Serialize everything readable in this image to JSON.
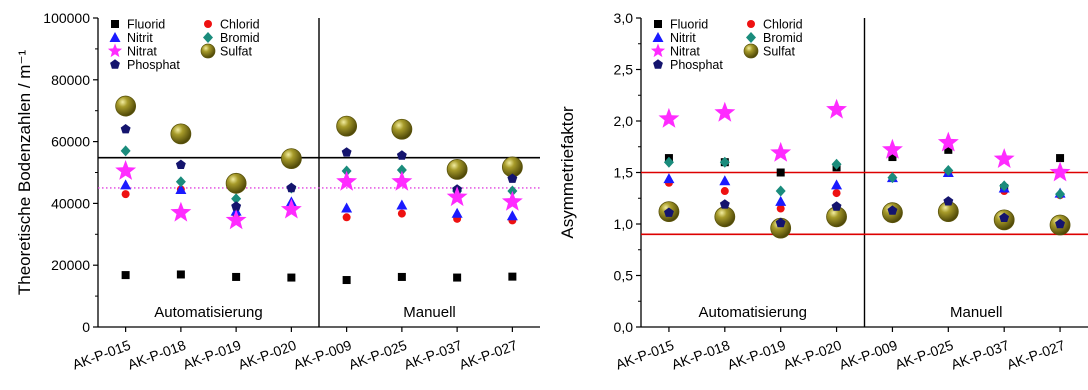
{
  "chart_data": [
    {
      "type": "scatter",
      "title": "",
      "ylabel": "Theoretische Bodenzahlen / m⁻¹",
      "xlabel": "",
      "categories": [
        "AK-P-015",
        "AK-P-018",
        "AK-P-019",
        "AK-P-020",
        "AK-P-009",
        "AK-P-025",
        "AK-P-037",
        "AK-P-027"
      ],
      "ylim": [
        0,
        100000
      ],
      "yticks": [
        "0",
        "20000",
        "40000",
        "60000",
        "80000",
        "100000"
      ],
      "ytick_values": [
        0,
        20000,
        40000,
        60000,
        80000,
        100000
      ],
      "groups": [
        {
          "label": "Automatisierung",
          "from": 0,
          "to": 3
        },
        {
          "label": "Manuell",
          "from": 4,
          "to": 7
        }
      ],
      "separator_after_index": 3,
      "reference_lines": [
        {
          "value": 54800,
          "color": "#000000",
          "style": "solid"
        },
        {
          "value": 45000,
          "color": "#e040e0",
          "style": "dotted"
        }
      ],
      "legend_position": "top-left",
      "grid": false,
      "series": [
        {
          "name": "Fluorid",
          "marker": "square",
          "color": "#000000",
          "values": [
            16800,
            17000,
            16200,
            16000,
            15200,
            16200,
            16000,
            16300
          ]
        },
        {
          "name": "Chlorid",
          "marker": "circle",
          "color": "#ee1111",
          "values": [
            43000,
            44500,
            36500,
            39500,
            35500,
            36700,
            35000,
            34500
          ]
        },
        {
          "name": "Nitrit",
          "marker": "triangle",
          "color": "#1a1aff",
          "values": [
            46000,
            44500,
            37500,
            40500,
            38500,
            39500,
            36800,
            36000
          ]
        },
        {
          "name": "Bromid",
          "marker": "diamond",
          "color": "#1a8c7c",
          "values": [
            57000,
            47000,
            41500,
            45000,
            50500,
            50800,
            44000,
            44000
          ]
        },
        {
          "name": "Nitrat",
          "marker": "star",
          "color": "#ff2bff",
          "values": [
            50500,
            37000,
            34500,
            38000,
            47000,
            47000,
            42000,
            40500
          ]
        },
        {
          "name": "Sulfat",
          "marker": "sphere",
          "color": "#8e8416",
          "values": [
            71500,
            62500,
            46500,
            54500,
            65000,
            64000,
            51000,
            51800
          ]
        },
        {
          "name": "Phosphat",
          "marker": "pentagon",
          "color": "#14146e",
          "values": [
            64000,
            52500,
            39000,
            45000,
            56500,
            55500,
            44500,
            48000
          ]
        }
      ]
    },
    {
      "type": "scatter",
      "title": "",
      "ylabel": "Asymmetriefaktor",
      "xlabel": "",
      "categories": [
        "AK-P-015",
        "AK-P-018",
        "AK-P-019",
        "AK-P-020",
        "AK-P-009",
        "AK-P-025",
        "AK-P-037",
        "AK-P-027"
      ],
      "ylim": [
        0,
        3
      ],
      "yticks": [
        "0,0",
        "0,5",
        "1,0",
        "1,5",
        "2,0",
        "2,5",
        "3,0"
      ],
      "ytick_values": [
        0,
        0.5,
        1,
        1.5,
        2,
        2.5,
        3
      ],
      "groups": [
        {
          "label": "Automatisierung",
          "from": 0,
          "to": 3
        },
        {
          "label": "Manuell",
          "from": 4,
          "to": 7
        }
      ],
      "separator_after_index": 3,
      "reference_lines": [
        {
          "value": 1.5,
          "color": "#dd0000",
          "style": "solid"
        },
        {
          "value": 0.9,
          "color": "#dd0000",
          "style": "solid"
        }
      ],
      "legend_position": "top-left",
      "grid": false,
      "series": [
        {
          "name": "Fluorid",
          "marker": "square",
          "color": "#000000",
          "values": [
            1.64,
            1.6,
            1.5,
            1.55,
            1.65,
            1.72,
            1.35,
            1.64
          ]
        },
        {
          "name": "Chlorid",
          "marker": "circle",
          "color": "#ee1111",
          "values": [
            1.4,
            1.32,
            1.15,
            1.3,
            1.45,
            1.5,
            1.32,
            1.28
          ]
        },
        {
          "name": "Nitrit",
          "marker": "triangle",
          "color": "#1a1aff",
          "values": [
            1.44,
            1.42,
            1.22,
            1.38,
            1.45,
            1.5,
            1.35,
            1.3
          ]
        },
        {
          "name": "Bromid",
          "marker": "diamond",
          "color": "#1a8c7c",
          "values": [
            1.6,
            1.6,
            1.32,
            1.58,
            1.45,
            1.52,
            1.37,
            1.29
          ]
        },
        {
          "name": "Nitrat",
          "marker": "star",
          "color": "#ff2bff",
          "values": [
            2.02,
            2.08,
            1.69,
            2.11,
            1.72,
            1.79,
            1.63,
            1.5
          ]
        },
        {
          "name": "Sulfat",
          "marker": "sphere",
          "color": "#8e8416",
          "values": [
            1.12,
            1.07,
            0.96,
            1.07,
            1.11,
            1.12,
            1.04,
            0.99
          ]
        },
        {
          "name": "Phosphat",
          "marker": "pentagon",
          "color": "#14146e",
          "values": [
            1.11,
            1.19,
            1.01,
            1.17,
            1.13,
            1.22,
            1.06,
            1.0
          ]
        }
      ]
    }
  ]
}
